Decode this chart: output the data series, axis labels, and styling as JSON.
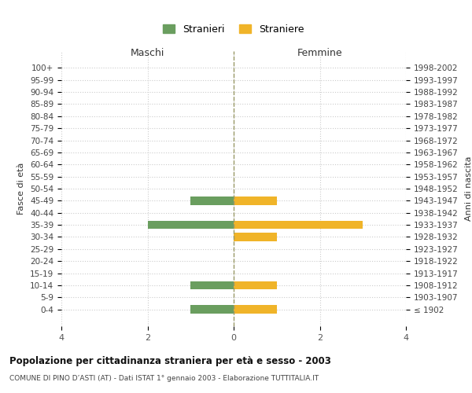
{
  "age_groups": [
    "100+",
    "95-99",
    "90-94",
    "85-89",
    "80-84",
    "75-79",
    "70-74",
    "65-69",
    "60-64",
    "55-59",
    "50-54",
    "45-49",
    "40-44",
    "35-39",
    "30-34",
    "25-29",
    "20-24",
    "15-19",
    "10-14",
    "5-9",
    "0-4"
  ],
  "birth_years": [
    "≤ 1902",
    "1903-1907",
    "1908-1912",
    "1913-1917",
    "1918-1922",
    "1923-1927",
    "1928-1932",
    "1933-1937",
    "1938-1942",
    "1943-1947",
    "1948-1952",
    "1953-1957",
    "1958-1962",
    "1963-1967",
    "1968-1972",
    "1973-1977",
    "1978-1982",
    "1983-1987",
    "1988-1992",
    "1993-1997",
    "1998-2002"
  ],
  "maschi": [
    0,
    0,
    0,
    0,
    0,
    0,
    0,
    0,
    0,
    0,
    0,
    -1,
    0,
    -2,
    0,
    0,
    0,
    0,
    -1,
    0,
    -1
  ],
  "femmine": [
    0,
    0,
    0,
    0,
    0,
    0,
    0,
    0,
    0,
    0,
    0,
    1,
    0,
    3,
    1,
    0,
    0,
    0,
    1,
    0,
    1
  ],
  "color_maschi": "#6a9e5f",
  "color_femmine": "#f0b429",
  "label_maschi": "Stranieri",
  "label_femmine": "Straniere",
  "title_main": "Popolazione per cittadinanza straniera per età e sesso - 2003",
  "title_sub": "COMUNE DI PINO D’ASTI (AT) - Dati ISTAT 1° gennaio 2003 - Elaborazione TUTTITALIA.IT",
  "xlabel_left": "Maschi",
  "xlabel_right": "Femmine",
  "ylabel_left": "Fasce di età",
  "ylabel_right": "Anni di nascita",
  "xlim": [
    -4,
    4
  ],
  "xticks": [
    -4,
    -2,
    0,
    2,
    4
  ],
  "xticklabels": [
    "4",
    "2",
    "0",
    "2",
    "4"
  ],
  "background_color": "#ffffff",
  "grid_color": "#cccccc",
  "bar_height": 0.7
}
